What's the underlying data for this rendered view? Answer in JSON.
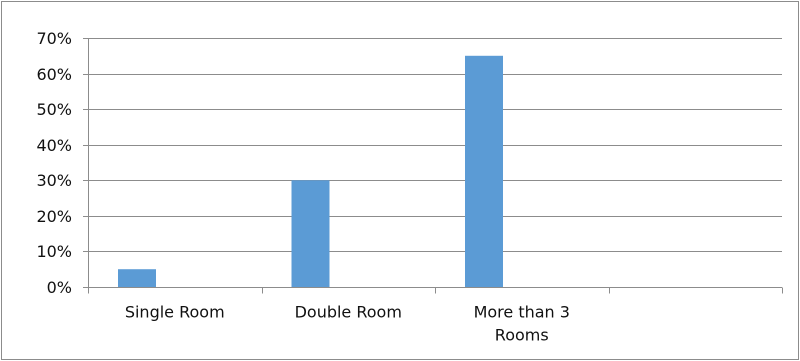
{
  "chart_data": {
    "type": "bar",
    "title": "",
    "xlabel": "",
    "ylabel": "",
    "categories": [
      [
        "Single Room"
      ],
      [
        "Double Room"
      ],
      [
        "More than 3",
        "Rooms"
      ],
      [
        ""
      ]
    ],
    "series": [
      {
        "values": [
          0.05,
          0.3,
          0.65,
          null
        ]
      }
    ],
    "ylim": [
      0,
      0.7
    ],
    "yticks": [
      0,
      0.1,
      0.2,
      0.3,
      0.4,
      0.5,
      0.6,
      0.7
    ],
    "ytick_labels": [
      "0%",
      "10%",
      "20%",
      "30%",
      "40%",
      "50%",
      "60%",
      "70%"
    ],
    "grid": "horizontal",
    "legend": "none",
    "colors": {
      "bar": "#5b9bd5",
      "grid": "#8c8c8c",
      "axis": "#8c8c8c",
      "text": "#111111"
    }
  }
}
